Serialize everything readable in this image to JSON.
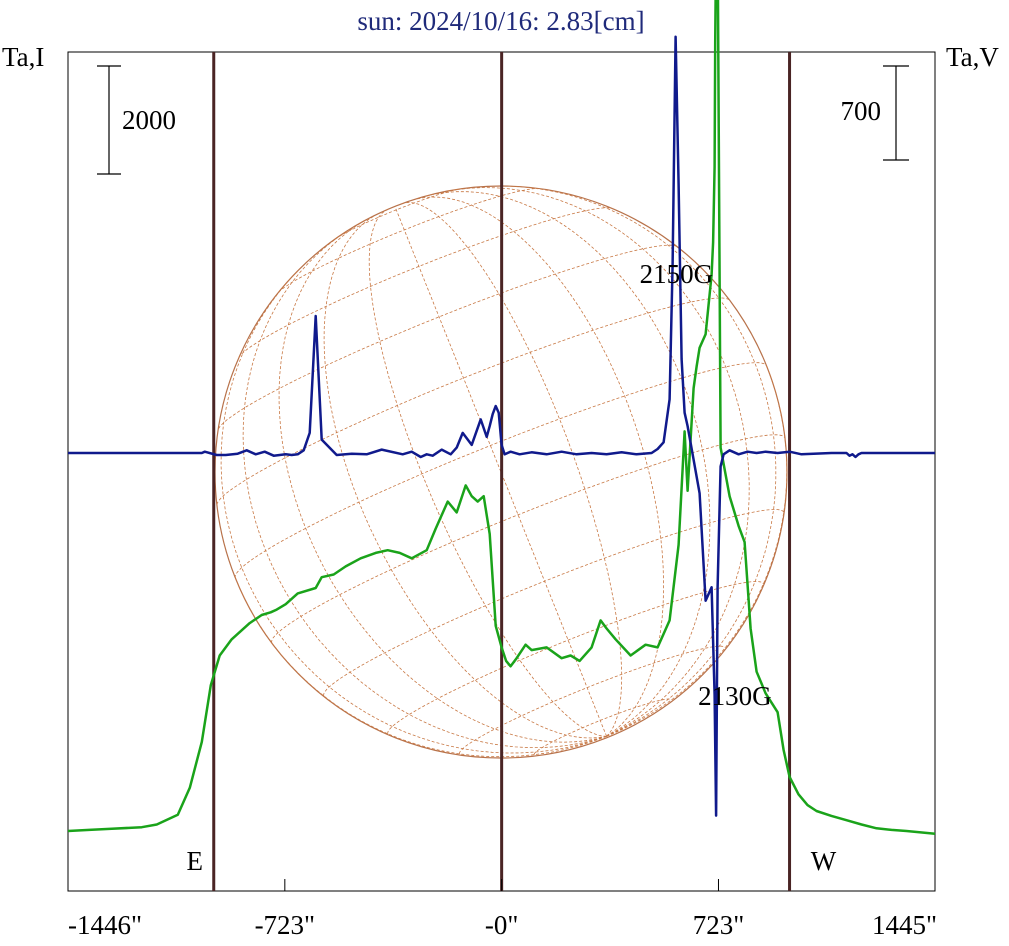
{
  "chart_data": {
    "type": "line",
    "title": "sun: 2024/10/16: 2.83[cm]",
    "left_axis_label": "Ta,I",
    "right_axis_label": "Ta,V",
    "x_ticks": [
      {
        "value": -1446,
        "label": "-1446\""
      },
      {
        "value": -723,
        "label": "-723\""
      },
      {
        "value": 0,
        "label": "-0\""
      },
      {
        "value": 723,
        "label": "723\""
      },
      {
        "value": 1445,
        "label": "1445\""
      }
    ],
    "xlim": [
      -1446,
      1445
    ],
    "scale_bars": {
      "intensity": {
        "label": "2000",
        "value": 2000
      },
      "polarization": {
        "label": "700",
        "value": 700
      }
    },
    "limb_markers": [
      {
        "label": "E",
        "x": -960
      },
      {
        "label": "W",
        "x": 960
      }
    ],
    "center_line_x": 0,
    "annotations": [
      {
        "text": "2150G",
        "x": 600
      },
      {
        "text": "2130G",
        "x": 805
      }
    ],
    "colors": {
      "title": "#1f2a7a",
      "intensity": "#1aa31a",
      "polarization": "#101a8c",
      "limb_lines": "#4a2424",
      "disk": "#b8724a",
      "grid": "#c87844"
    },
    "series": [
      {
        "key": "intensity",
        "axis": "Ta,I",
        "zero": 0,
        "x": [
          -1446,
          -1375,
          -1300,
          -1200,
          -1150,
          -1080,
          -1040,
          -1000,
          -970,
          -940,
          -900,
          -840,
          -800,
          -770,
          -750,
          -720,
          -680,
          -620,
          -600,
          -560,
          -520,
          -470,
          -420,
          -380,
          -340,
          -300,
          -250,
          -220,
          -180,
          -150,
          -120,
          -100,
          -80,
          -60,
          -40,
          -20,
          0,
          15,
          30,
          50,
          80,
          100,
          150,
          200,
          230,
          260,
          300,
          330,
          350,
          380,
          430,
          480,
          520,
          560,
          590,
          610,
          620,
          640,
          650,
          660,
          680,
          700,
          705,
          710,
          712,
          715,
          720,
          730,
          760,
          790,
          810,
          830,
          850,
          880,
          920,
          940,
          960,
          990,
          1020,
          1050,
          1100,
          1150,
          1200,
          1250,
          1300,
          1350,
          1445
        ],
        "y": [
          0,
          20,
          40,
          70,
          120,
          300,
          800,
          1650,
          2700,
          3250,
          3550,
          3850,
          4000,
          4050,
          4100,
          4200,
          4400,
          4500,
          4700,
          4750,
          4900,
          5050,
          5150,
          5200,
          5150,
          5050,
          5200,
          5600,
          6100,
          5900,
          6400,
          6200,
          6100,
          6200,
          5500,
          3800,
          3400,
          3150,
          3050,
          3200,
          3450,
          3350,
          3400,
          3200,
          3250,
          3150,
          3400,
          3900,
          3750,
          3550,
          3250,
          3450,
          3400,
          3900,
          5300,
          7400,
          6300,
          8200,
          8600,
          8950,
          9200,
          10300,
          10900,
          12300,
          14600,
          16400,
          16600,
          7100,
          6200,
          5650,
          5350,
          3750,
          2950,
          2550,
          2200,
          1500,
          1000,
          680,
          480,
          370,
          280,
          200,
          120,
          50,
          20,
          0,
          -50
        ]
      },
      {
        "key": "polarization",
        "axis": "Ta,V",
        "zero": 0,
        "x": [
          -1446,
          -1000,
          -990,
          -950,
          -920,
          -880,
          -850,
          -820,
          -790,
          -760,
          -720,
          -700,
          -680,
          -660,
          -640,
          -620,
          -600,
          -550,
          -500,
          -450,
          -400,
          -330,
          -300,
          -270,
          -250,
          -230,
          -200,
          -170,
          -150,
          -130,
          -100,
          -70,
          -50,
          -40,
          -30,
          -20,
          -10,
          0,
          10,
          20,
          30,
          60,
          100,
          150,
          200,
          250,
          300,
          350,
          400,
          450,
          500,
          520,
          540,
          560,
          570,
          580,
          590,
          600,
          610,
          620,
          640,
          660,
          680,
          700,
          710,
          715,
          720,
          730,
          740,
          760,
          790,
          820,
          850,
          880,
          920,
          960,
          1000,
          1100,
          1150,
          1160,
          1170,
          1180,
          1190,
          1200,
          1300,
          1445
        ],
        "y": [
          0,
          0,
          10,
          -15,
          -15,
          -5,
          20,
          -10,
          10,
          -20,
          -10,
          -15,
          -10,
          20,
          150,
          1020,
          100,
          -15,
          -5,
          -10,
          25,
          -10,
          10,
          -30,
          -10,
          -20,
          25,
          -10,
          40,
          150,
          60,
          250,
          120,
          200,
          290,
          350,
          300,
          60,
          -10,
          0,
          10,
          -10,
          5,
          -10,
          10,
          -10,
          0,
          -10,
          5,
          -10,
          0,
          30,
          80,
          400,
          1400,
          3100,
          2000,
          700,
          300,
          200,
          -50,
          -300,
          -1100,
          -1000,
          -1800,
          -2700,
          -1000,
          -100,
          -10,
          20,
          -10,
          10,
          0,
          10,
          0,
          10,
          -10,
          0,
          0,
          -20,
          -10,
          -30,
          -10,
          0,
          0,
          0
        ]
      }
    ]
  }
}
